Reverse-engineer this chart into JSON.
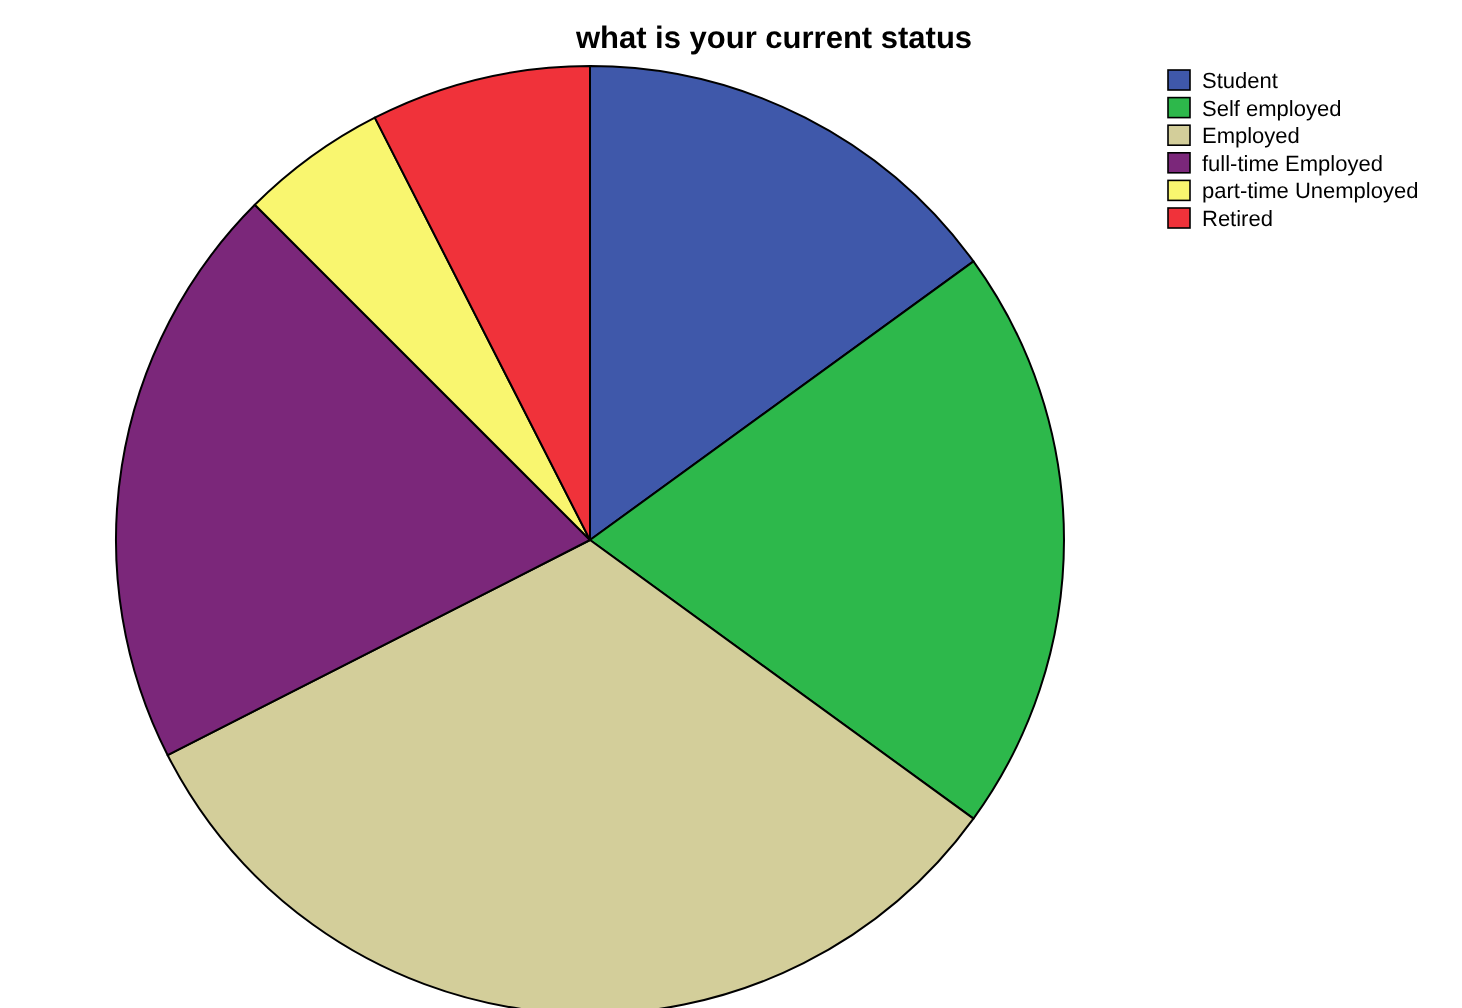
{
  "chart_data": {
    "type": "pie",
    "title": "what is your current status",
    "categories": [
      "Student",
      "Self employed",
      "Employed",
      "full-time Employed",
      "part-time Unemployed",
      "Retired"
    ],
    "values": [
      15,
      20,
      32.5,
      20,
      5,
      7.5
    ],
    "colors": [
      "#3f58aa",
      "#2db84b",
      "#d3ce9a",
      "#7b277a",
      "#f9f66f",
      "#f0323a"
    ],
    "legend": "top right"
  }
}
